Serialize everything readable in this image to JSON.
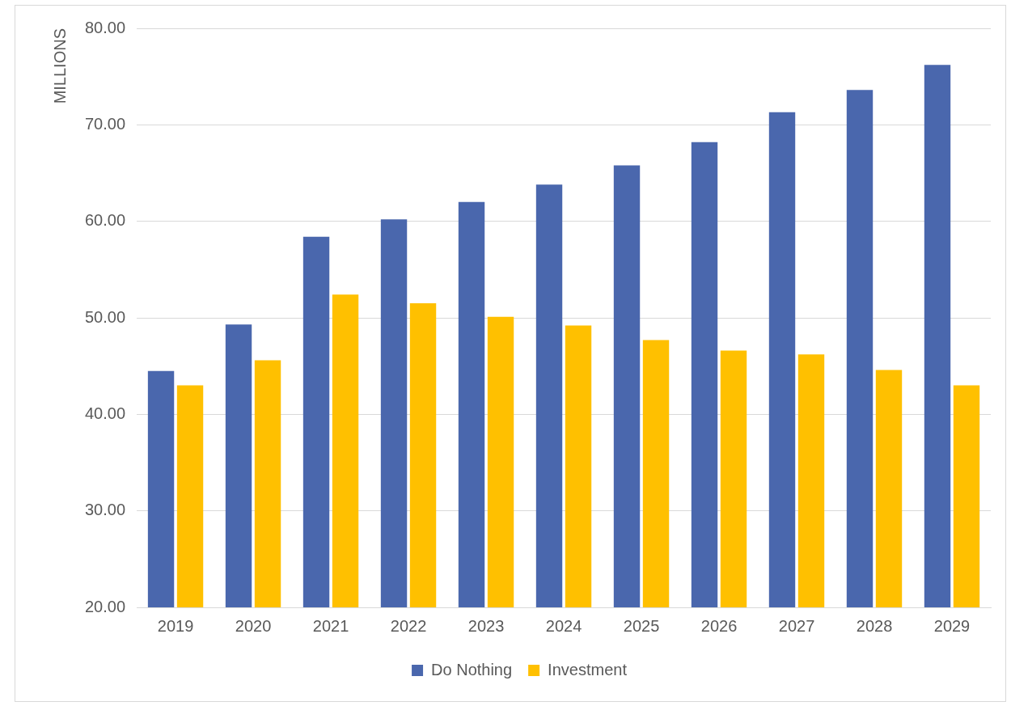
{
  "chart_data": {
    "type": "bar",
    "ylabel": "MILLIONS",
    "categories": [
      "2019",
      "2020",
      "2021",
      "2022",
      "2023",
      "2024",
      "2025",
      "2026",
      "2027",
      "2028",
      "2029"
    ],
    "series": [
      {
        "name": "Do Nothing",
        "color": "#4a67ad",
        "values": [
          44.5,
          49.3,
          58.4,
          60.2,
          62.0,
          63.8,
          65.8,
          68.2,
          71.3,
          73.6,
          76.2
        ]
      },
      {
        "name": "Investment",
        "color": "#ffc000",
        "values": [
          43.0,
          45.6,
          52.4,
          51.5,
          50.1,
          49.2,
          47.7,
          46.6,
          46.2,
          44.6,
          43.0
        ]
      }
    ],
    "ylim": [
      20,
      80
    ],
    "yticks": [
      {
        "value": 20,
        "label": "20.00"
      },
      {
        "value": 30,
        "label": "30.00"
      },
      {
        "value": 40,
        "label": "40.00"
      },
      {
        "value": 50,
        "label": "50.00"
      },
      {
        "value": 60,
        "label": "60.00"
      },
      {
        "value": 70,
        "label": "70.00"
      },
      {
        "value": 80,
        "label": "80.00"
      }
    ],
    "grid": "y",
    "legend": "bottom"
  }
}
